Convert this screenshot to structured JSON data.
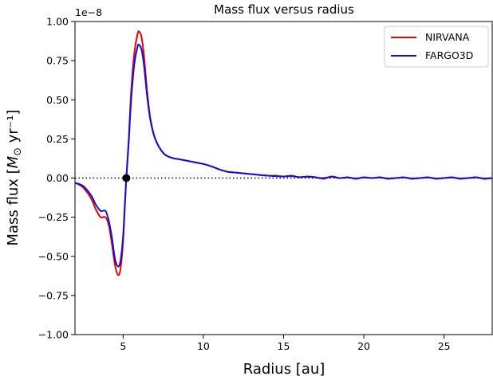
{
  "chart_data": {
    "type": "line",
    "title": "Mass flux versus radius",
    "xlabel": "Radius [au]",
    "ylabel": "Mass flux [M⊙ yr⁻¹]",
    "y_offset_label": "1e−8",
    "xlim": [
      2,
      28
    ],
    "ylim": [
      -1.0,
      1.0
    ],
    "x_ticks": [
      5,
      10,
      15,
      20,
      25
    ],
    "y_ticks": [
      -1.0,
      -0.75,
      -0.5,
      -0.25,
      0.0,
      0.25,
      0.5,
      0.75,
      1.0
    ],
    "x_tick_labels": [
      "5",
      "10",
      "15",
      "20",
      "25"
    ],
    "y_tick_labels": [
      "−1.00",
      "−0.75",
      "−0.50",
      "−0.25",
      "0.00",
      "0.25",
      "0.50",
      "0.75",
      "1.00"
    ],
    "grid": false,
    "legend_position": "top-right",
    "zero_line": {
      "y": 0.0,
      "style": "dotted",
      "color": "#000000"
    },
    "marker_point": {
      "x": 5.2,
      "y": 0.0,
      "color": "#000000"
    },
    "series": [
      {
        "name": "NIRVANA",
        "color": "#ee0000",
        "points": [
          [
            2.0,
            -0.03
          ],
          [
            2.5,
            -0.06
          ],
          [
            3.0,
            -0.13
          ],
          [
            3.3,
            -0.2
          ],
          [
            3.6,
            -0.25
          ],
          [
            3.9,
            -0.25
          ],
          [
            4.1,
            -0.3
          ],
          [
            4.3,
            -0.42
          ],
          [
            4.5,
            -0.56
          ],
          [
            4.7,
            -0.62
          ],
          [
            4.85,
            -0.57
          ],
          [
            5.0,
            -0.4
          ],
          [
            5.1,
            -0.2
          ],
          [
            5.2,
            0.0
          ],
          [
            5.35,
            0.25
          ],
          [
            5.5,
            0.55
          ],
          [
            5.7,
            0.8
          ],
          [
            5.9,
            0.92
          ],
          [
            6.0,
            0.935
          ],
          [
            6.15,
            0.9
          ],
          [
            6.3,
            0.78
          ],
          [
            6.5,
            0.55
          ],
          [
            6.7,
            0.38
          ],
          [
            7.0,
            0.25
          ],
          [
            7.5,
            0.16
          ],
          [
            8.0,
            0.13
          ],
          [
            8.5,
            0.12
          ],
          [
            9.0,
            0.11
          ],
          [
            9.5,
            0.1
          ],
          [
            10.0,
            0.09
          ],
          [
            10.5,
            0.075
          ],
          [
            11.0,
            0.055
          ],
          [
            11.5,
            0.04
          ],
          [
            12.0,
            0.035
          ],
          [
            12.5,
            0.03
          ],
          [
            13.0,
            0.025
          ],
          [
            13.5,
            0.02
          ],
          [
            14.0,
            0.015
          ],
          [
            14.5,
            0.015
          ],
          [
            15.0,
            0.01
          ],
          [
            15.5,
            0.015
          ],
          [
            16.0,
            0.005
          ],
          [
            16.5,
            0.01
          ],
          [
            17.0,
            0.005
          ],
          [
            17.5,
            -0.005
          ],
          [
            18.0,
            0.01
          ],
          [
            18.5,
            0.0
          ],
          [
            19.0,
            0.005
          ],
          [
            19.5,
            -0.005
          ],
          [
            20.0,
            0.005
          ],
          [
            20.5,
            0.0
          ],
          [
            21.0,
            0.005
          ],
          [
            21.5,
            -0.005
          ],
          [
            22.0,
            0.0
          ],
          [
            22.5,
            0.005
          ],
          [
            23.0,
            -0.005
          ],
          [
            23.5,
            0.0
          ],
          [
            24.0,
            0.005
          ],
          [
            24.5,
            -0.005
          ],
          [
            25.0,
            0.0
          ],
          [
            25.5,
            0.005
          ],
          [
            26.0,
            -0.005
          ],
          [
            26.5,
            0.0
          ],
          [
            27.0,
            0.005
          ],
          [
            27.5,
            -0.005
          ],
          [
            28.0,
            0.0
          ]
        ]
      },
      {
        "name": "FARGO3D",
        "color": "#1010dd",
        "points": [
          [
            2.0,
            -0.03
          ],
          [
            2.5,
            -0.05
          ],
          [
            3.0,
            -0.11
          ],
          [
            3.3,
            -0.17
          ],
          [
            3.6,
            -0.21
          ],
          [
            3.9,
            -0.21
          ],
          [
            4.1,
            -0.27
          ],
          [
            4.3,
            -0.38
          ],
          [
            4.5,
            -0.52
          ],
          [
            4.7,
            -0.565
          ],
          [
            4.85,
            -0.52
          ],
          [
            5.0,
            -0.37
          ],
          [
            5.1,
            -0.18
          ],
          [
            5.2,
            0.0
          ],
          [
            5.35,
            0.23
          ],
          [
            5.5,
            0.5
          ],
          [
            5.7,
            0.73
          ],
          [
            5.9,
            0.84
          ],
          [
            6.0,
            0.85
          ],
          [
            6.15,
            0.82
          ],
          [
            6.3,
            0.72
          ],
          [
            6.5,
            0.52
          ],
          [
            6.7,
            0.37
          ],
          [
            7.0,
            0.25
          ],
          [
            7.5,
            0.16
          ],
          [
            8.0,
            0.13
          ],
          [
            8.5,
            0.12
          ],
          [
            9.0,
            0.11
          ],
          [
            9.5,
            0.1
          ],
          [
            10.0,
            0.09
          ],
          [
            10.5,
            0.075
          ],
          [
            11.0,
            0.055
          ],
          [
            11.5,
            0.04
          ],
          [
            12.0,
            0.035
          ],
          [
            12.5,
            0.03
          ],
          [
            13.0,
            0.025
          ],
          [
            13.5,
            0.02
          ],
          [
            14.0,
            0.015
          ],
          [
            14.5,
            0.012
          ],
          [
            15.0,
            0.01
          ],
          [
            15.5,
            0.012
          ],
          [
            16.0,
            0.006
          ],
          [
            16.5,
            0.008
          ],
          [
            17.0,
            0.004
          ],
          [
            17.5,
            0.0
          ],
          [
            18.0,
            0.008
          ],
          [
            18.5,
            0.0
          ],
          [
            19.0,
            0.004
          ],
          [
            19.5,
            -0.003
          ],
          [
            20.0,
            0.004
          ],
          [
            20.5,
            0.0
          ],
          [
            21.0,
            0.004
          ],
          [
            21.5,
            -0.003
          ],
          [
            22.0,
            0.0
          ],
          [
            22.5,
            0.004
          ],
          [
            23.0,
            -0.003
          ],
          [
            23.5,
            0.0
          ],
          [
            24.0,
            0.004
          ],
          [
            24.5,
            -0.003
          ],
          [
            25.0,
            0.0
          ],
          [
            25.5,
            0.004
          ],
          [
            26.0,
            -0.003
          ],
          [
            26.5,
            0.0
          ],
          [
            27.0,
            0.004
          ],
          [
            27.5,
            -0.003
          ],
          [
            28.0,
            0.0
          ]
        ]
      }
    ]
  }
}
